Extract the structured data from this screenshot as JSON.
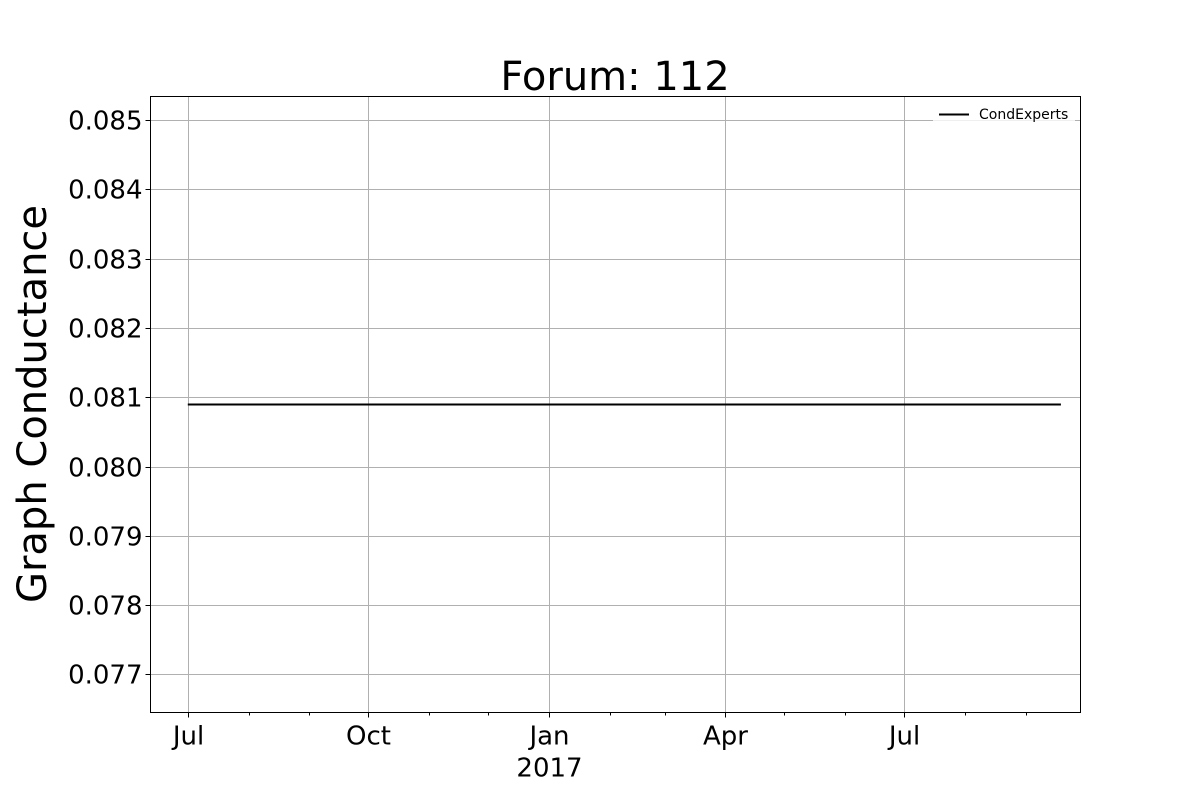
{
  "chart_data": {
    "type": "line",
    "title": "Forum: 112",
    "xlabel": "",
    "ylabel": "Graph Conductance",
    "x_axis": {
      "kind": "date",
      "range": [
        "2016-06-12",
        "2017-09-29"
      ],
      "major_ticks": [
        {
          "date": "2016-07-01",
          "label": "Jul"
        },
        {
          "date": "2016-10-01",
          "label": "Oct"
        },
        {
          "date": "2017-01-01",
          "label": "Jan",
          "sublabel": "2017"
        },
        {
          "date": "2017-04-01",
          "label": "Apr"
        },
        {
          "date": "2017-07-01",
          "label": "Jul"
        }
      ],
      "minor_ticks": [
        "2016-08-01",
        "2016-09-01",
        "2016-11-01",
        "2016-12-01",
        "2017-02-01",
        "2017-03-01",
        "2017-05-01",
        "2017-06-01",
        "2017-08-01",
        "2017-09-01"
      ]
    },
    "y_axis": {
      "range": [
        0.07645,
        0.08534
      ],
      "ticks": [
        {
          "value": 0.077,
          "label": "0.077"
        },
        {
          "value": 0.078,
          "label": "0.078"
        },
        {
          "value": 0.079,
          "label": "0.079"
        },
        {
          "value": 0.08,
          "label": "0.080"
        },
        {
          "value": 0.081,
          "label": "0.081"
        },
        {
          "value": 0.082,
          "label": "0.082"
        },
        {
          "value": 0.083,
          "label": "0.083"
        },
        {
          "value": 0.084,
          "label": "0.084"
        },
        {
          "value": 0.085,
          "label": "0.085"
        }
      ]
    },
    "grid": true,
    "legend": {
      "position": "top-right"
    },
    "series": [
      {
        "name": "CondExperts",
        "color": "#000000",
        "points": [
          {
            "x": "2016-07-01",
            "y": 0.0809
          },
          {
            "x": "2017-09-19",
            "y": 0.0809
          }
        ]
      }
    ]
  }
}
